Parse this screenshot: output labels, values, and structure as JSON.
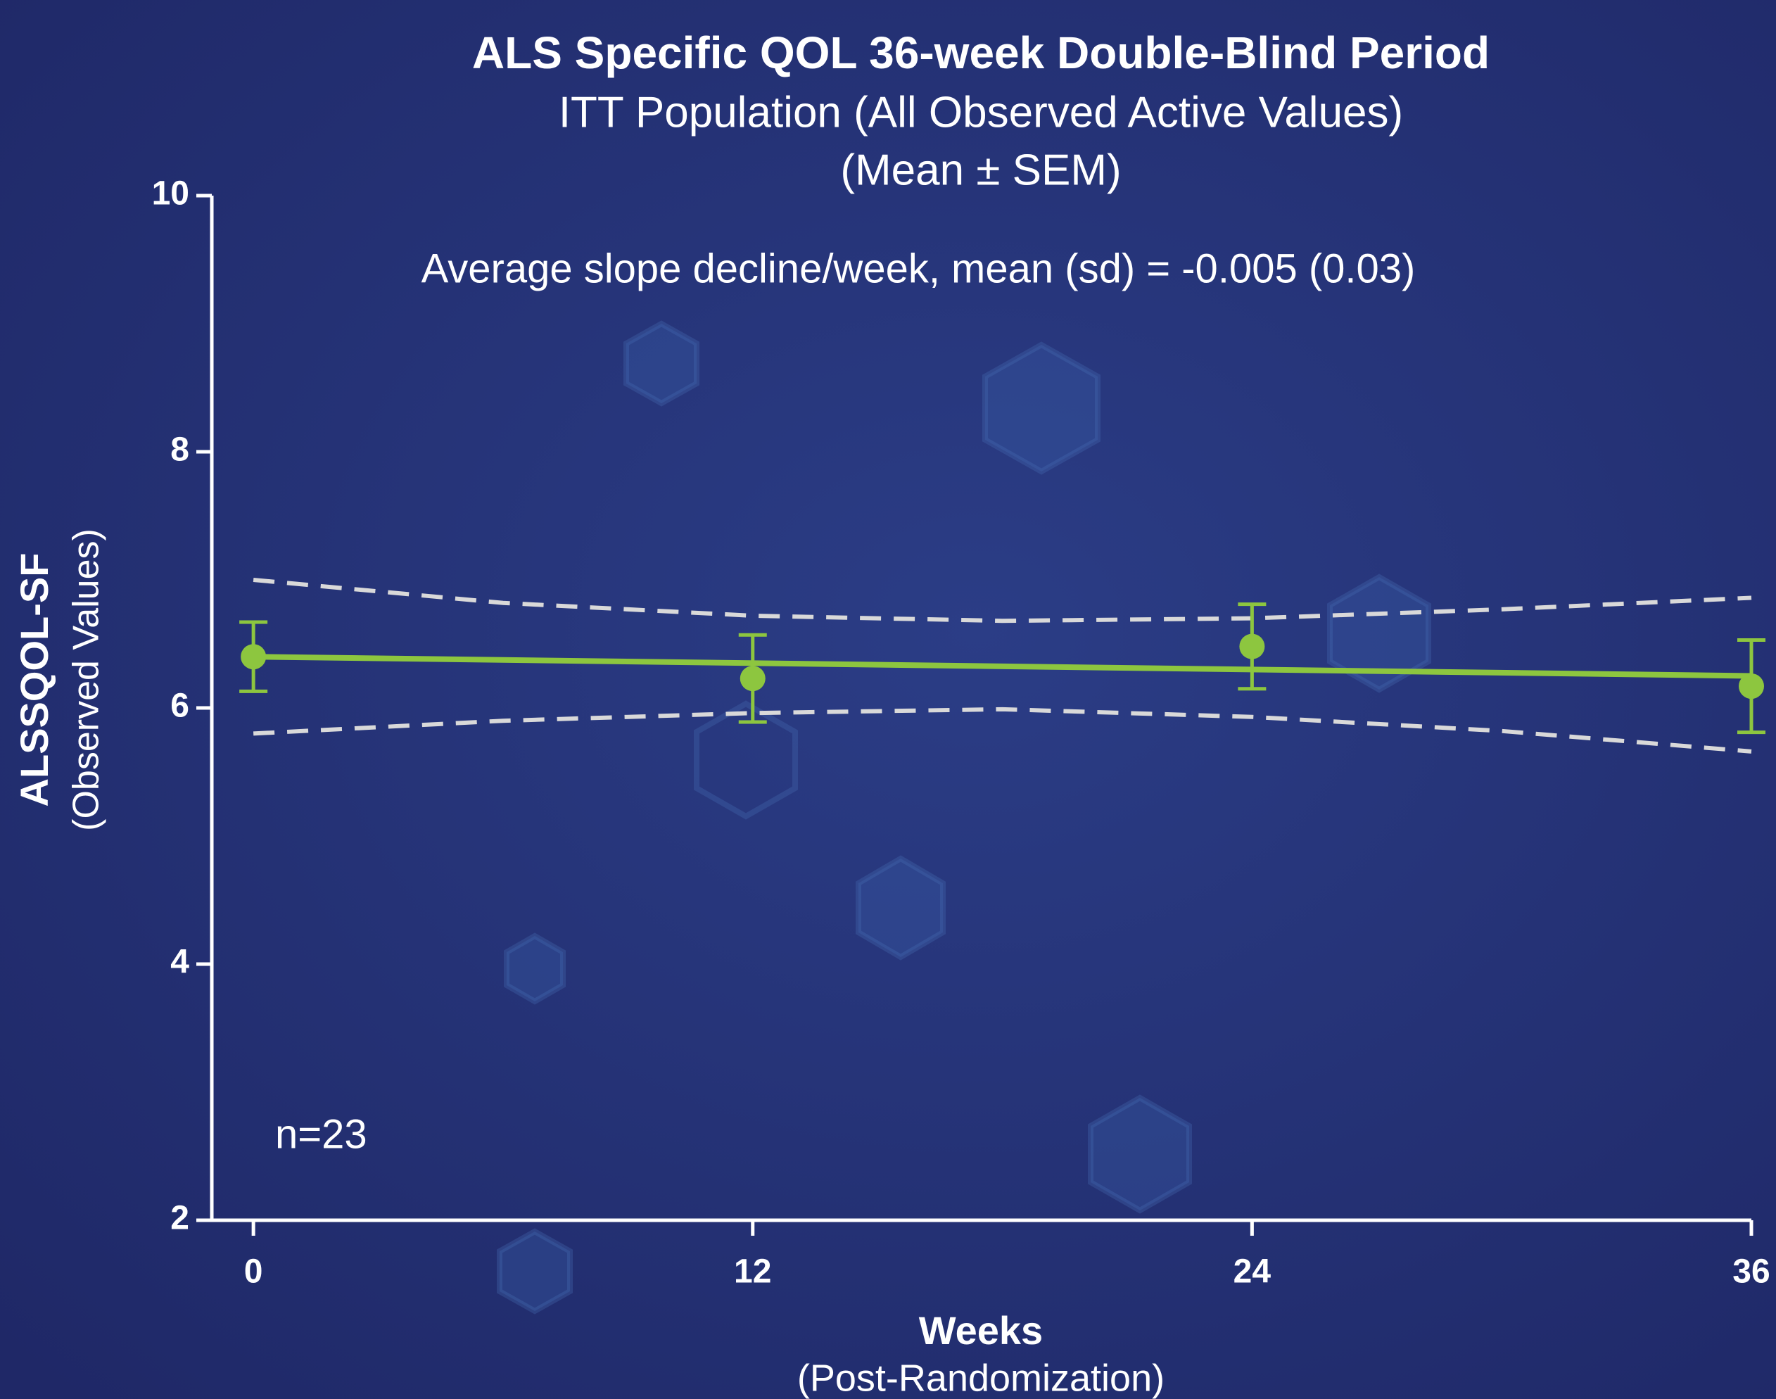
{
  "chart_data": {
    "type": "line",
    "title": "ALS Specific QOL 36-week Double-Blind Period",
    "subtitle": "ITT Population (All Observed Active Values)",
    "subtitle_2": "(Mean ± SEM)",
    "annotation": "Average slope decline/week, mean (sd) = -0.005 (0.03)",
    "n_label": "n=23",
    "xlabel": "Weeks",
    "xlabel_2": "(Post-Randomization)",
    "ylabel": "ALSSQOL-SF",
    "ylabel_2": "(Observed Values)",
    "xlim": [
      -1,
      36
    ],
    "xticks": [
      0,
      12,
      24,
      36
    ],
    "ylim": [
      2,
      10
    ],
    "yticks": [
      2,
      4,
      6,
      8,
      10
    ],
    "x": [
      0,
      12,
      24,
      36
    ],
    "series": [
      {
        "color": "#8dc63f",
        "values": [
          6.4,
          6.23,
          6.48,
          6.17
        ],
        "errors": [
          0.27,
          0.34,
          0.33,
          0.36
        ]
      }
    ],
    "fit": {
      "color": "#8dc63f",
      "x": [
        0,
        36
      ],
      "values": [
        6.4,
        6.25
      ]
    },
    "bands": [
      {
        "color": "#d9d9d9",
        "x": [
          0,
          6,
          12,
          18,
          24,
          30,
          36
        ],
        "values": [
          7.0,
          6.82,
          6.72,
          6.68,
          6.7,
          6.77,
          6.86
        ]
      },
      {
        "color": "#d9d9d9",
        "x": [
          0,
          6,
          12,
          18,
          24,
          30,
          36
        ],
        "values": [
          5.8,
          5.9,
          5.96,
          5.99,
          5.93,
          5.82,
          5.66
        ]
      }
    ]
  }
}
